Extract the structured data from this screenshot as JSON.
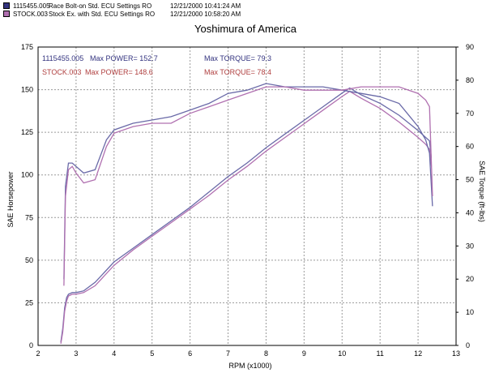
{
  "header": [
    {
      "run": "1115455.005",
      "desc": "Race Bolt-on Std. ECU Settings RO",
      "date": "12/21/2000 10:41:24 AM",
      "color": "#33337f"
    },
    {
      "run": "STOCK.003",
      "desc": "Stock Ex. with Std. ECU Settings RO",
      "date": "12/21/2000 10:58:20 AM",
      "color": "#b070b0"
    }
  ],
  "chart_data": {
    "type": "line",
    "title": "Yoshimura of America",
    "xlabel": "RPM (x1000)",
    "ylabel": "SAE Horsepower",
    "y2label": "SAE Torque (ft-lbs)",
    "xlim": [
      2,
      13
    ],
    "ylim": [
      0,
      175
    ],
    "y2lim": [
      0,
      90
    ],
    "xticks": [
      "2",
      "3",
      "4",
      "5",
      "6",
      "7",
      "8",
      "9",
      "10",
      "11",
      "12",
      "13"
    ],
    "yticks": [
      "0",
      "25",
      "50",
      "75",
      "100",
      "125",
      "150",
      "175"
    ],
    "y2ticks": [
      "0",
      "10",
      "20",
      "30",
      "40",
      "50",
      "60",
      "70",
      "80",
      "90"
    ],
    "grid": true,
    "annotations": [
      {
        "run": "1115455.005",
        "power_label": "Max POWER= 152.7",
        "torque_label": "Max TORQUE= 79.3",
        "color": "#33337f"
      },
      {
        "run": "STOCK.003",
        "power_label": "Max POWER= 148.6",
        "torque_label": "Max TORQUE= 78.4",
        "color": "#b04040"
      }
    ],
    "series": [
      {
        "name": "1115455.005",
        "measure": "SAE Horsepower",
        "axis": "left",
        "color": "#6a6aa8",
        "x": [
          2.6,
          2.65,
          2.7,
          2.75,
          2.8,
          2.9,
          3.0,
          3.2,
          3.5,
          4.0,
          4.5,
          5.0,
          5.5,
          6.0,
          6.5,
          7.0,
          7.5,
          8.0,
          8.5,
          9.0,
          9.5,
          10.0,
          10.2,
          10.5,
          11.0,
          11.5,
          12.0,
          12.2,
          12.3,
          12.35
        ],
        "y": [
          2,
          10,
          22,
          28,
          30,
          31,
          31,
          32,
          37,
          49,
          57,
          65,
          73,
          81,
          90,
          99,
          107,
          116,
          124,
          132,
          140,
          148,
          151,
          147,
          142,
          135,
          126,
          122,
          120,
          110
        ]
      },
      {
        "name": "STOCK.003",
        "measure": "SAE Horsepower",
        "axis": "left",
        "color": "#b070b0",
        "x": [
          2.6,
          2.65,
          2.7,
          2.75,
          2.8,
          2.9,
          3.0,
          3.2,
          3.5,
          4.0,
          4.5,
          5.0,
          5.5,
          6.0,
          6.5,
          7.0,
          7.5,
          8.0,
          8.5,
          9.0,
          9.5,
          10.0,
          10.2,
          10.5,
          11.0,
          11.5,
          12.0,
          12.2,
          12.3,
          12.35
        ],
        "y": [
          1,
          8,
          20,
          26,
          29,
          30,
          30,
          31,
          35,
          47,
          56,
          64,
          72,
          80,
          88,
          97,
          105,
          114,
          122,
          130,
          138,
          146,
          149,
          145,
          139,
          131,
          122,
          118,
          115,
          105
        ]
      },
      {
        "name": "1115455.005",
        "measure": "SAE Torque (ft-lbs)",
        "axis": "right",
        "color": "#6a6aa8",
        "x": [
          2.68,
          2.72,
          2.8,
          2.9,
          3.0,
          3.2,
          3.5,
          3.8,
          4.0,
          4.5,
          5.0,
          5.5,
          6.0,
          6.5,
          7.0,
          7.5,
          8.0,
          8.5,
          9.0,
          9.5,
          10.0,
          10.5,
          11.0,
          11.5,
          12.0,
          12.2,
          12.3,
          12.38
        ],
        "y": [
          20,
          48,
          55,
          55,
          54,
          52,
          53,
          62,
          65,
          67,
          68,
          69,
          71,
          73,
          76,
          77,
          79,
          78,
          78,
          78,
          77,
          76,
          75,
          73,
          66,
          62,
          58,
          42
        ]
      },
      {
        "name": "STOCK.003",
        "measure": "SAE Torque (ft-lbs)",
        "axis": "right",
        "color": "#b070b0",
        "x": [
          2.68,
          2.72,
          2.8,
          2.9,
          3.0,
          3.2,
          3.5,
          3.8,
          4.0,
          4.5,
          5.0,
          5.5,
          6.0,
          6.5,
          7.0,
          7.5,
          8.0,
          8.5,
          9.0,
          9.5,
          10.0,
          10.5,
          11.0,
          11.5,
          12.0,
          12.2,
          12.3,
          12.38
        ],
        "y": [
          18,
          45,
          53,
          54,
          52,
          49,
          50,
          60,
          64,
          66,
          67,
          67,
          70,
          72,
          74,
          76,
          78,
          78,
          77,
          77,
          77,
          78,
          78,
          78,
          76,
          74,
          72,
          45
        ]
      }
    ]
  }
}
